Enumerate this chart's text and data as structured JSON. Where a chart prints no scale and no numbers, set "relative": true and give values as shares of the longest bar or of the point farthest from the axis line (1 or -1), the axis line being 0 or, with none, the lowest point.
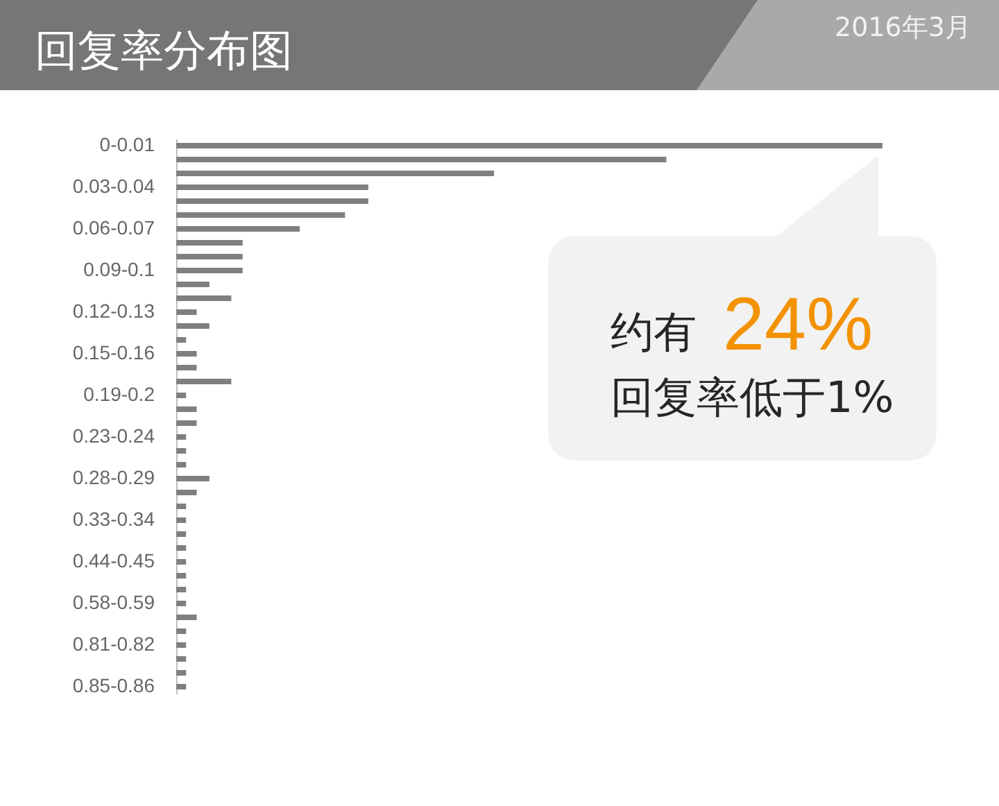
{
  "chart_data": {
    "type": "bar",
    "orientation": "horizontal",
    "relative": true,
    "title": "回复率分布图",
    "subtitle": "2016年3月",
    "categories": [
      "0-0.01",
      null,
      null,
      "0.03-0.04",
      null,
      null,
      "0.06-0.07",
      null,
      null,
      "0.09-0.1",
      null,
      null,
      "0.12-0.13",
      null,
      null,
      "0.15-0.16",
      null,
      null,
      "0.19-0.2",
      null,
      null,
      "0.23-0.24",
      null,
      null,
      "0.28-0.29",
      null,
      null,
      "0.33-0.34",
      null,
      null,
      "0.44-0.45",
      null,
      null,
      "0.58-0.59",
      null,
      null,
      "0.81-0.82",
      null,
      null,
      "0.85-0.86"
    ],
    "values": [
      1.0,
      0.694,
      0.45,
      0.272,
      0.272,
      0.239,
      0.175,
      0.094,
      0.094,
      0.094,
      0.047,
      0.078,
      0.029,
      0.047,
      0.014,
      0.029,
      0.029,
      0.078,
      0.014,
      0.029,
      0.029,
      0.014,
      0.014,
      0.014,
      0.047,
      0.029,
      0.014,
      0.014,
      0.014,
      0.014,
      0.014,
      0.014,
      0.014,
      0.014,
      0.029,
      0.014,
      0.014,
      0.014,
      0.014,
      0.014
    ],
    "color": "#7f7f7f",
    "annotations": [
      "约有",
      "24%",
      "回复率低于1%"
    ]
  }
}
